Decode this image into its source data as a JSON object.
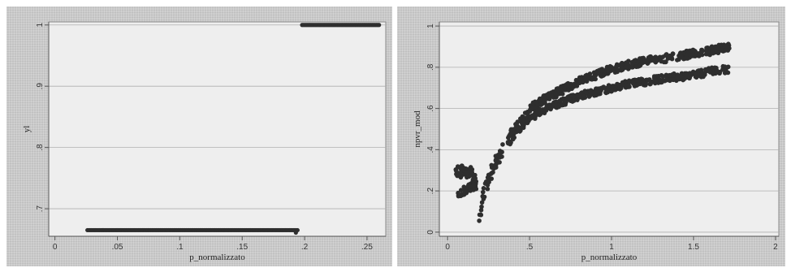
{
  "chart_data": [
    {
      "type": "scatter",
      "title": "",
      "xlabel": "p_normalizzato",
      "ylabel": "yl",
      "xlim": [
        -0.005,
        0.265
      ],
      "ylim": [
        0.655,
        1.005
      ],
      "xticks": [
        0,
        0.05,
        0.1,
        0.15,
        0.2,
        0.25
      ],
      "xtick_labels": [
        "0",
        ".05",
        ".1",
        ".15",
        ".2",
        ".25"
      ],
      "yticks": [
        0.7,
        0.8,
        0.9,
        1
      ],
      "ytick_labels": [
        ".7",
        ".8",
        ".9",
        "1"
      ],
      "grid": true,
      "series": [
        {
          "segments": [
            {
              "x_start": 0.026,
              "x_end": 0.195,
              "y": 0.665
            },
            {
              "x_start": 0.198,
              "x_end": 0.26,
              "y": 1.0
            }
          ],
          "points": [
            {
              "x": 0.193,
              "y": 0.661
            }
          ]
        }
      ]
    },
    {
      "type": "scatter",
      "title": "",
      "xlabel": "p_normalizzato",
      "ylabel": "npvr_mod",
      "xlim": [
        -0.05,
        2.02
      ],
      "ylim": [
        -0.02,
        1.02
      ],
      "xticks": [
        0,
        0.5,
        1,
        1.5,
        2
      ],
      "xtick_labels": [
        "0",
        ".5",
        "1",
        "1.5",
        "2"
      ],
      "yticks": [
        0,
        0.2,
        0.4,
        0.6,
        0.8,
        1
      ],
      "ytick_labels": [
        "0",
        ".2",
        ".4",
        ".6",
        ".8",
        "1"
      ],
      "grid": true,
      "series": [
        {
          "clusters": [
            {
              "x": [
                0.05,
                0.08,
                0.1,
                0.12,
                0.14,
                0.16,
                0.18
              ],
              "y": [
                0.3,
                0.29,
                0.31,
                0.28,
                0.3,
                0.26,
                0.24
              ],
              "spread": 0.025
            },
            {
              "x": [
                0.06,
                0.1,
                0.14,
                0.18
              ],
              "y": [
                0.19,
                0.2,
                0.22,
                0.23
              ],
              "spread": 0.02
            },
            {
              "x": [
                0.19,
                0.2,
                0.22,
                0.25,
                0.3,
                0.35,
                0.4,
                0.45,
                0.5
              ],
              "y": [
                0.02,
                0.1,
                0.18,
                0.26,
                0.35,
                0.42,
                0.48,
                0.53,
                0.57
              ],
              "spread": 0.035
            },
            {
              "x": [
                0.5,
                0.6,
                0.7,
                0.8,
                0.9,
                1.0,
                1.1,
                1.2,
                1.3,
                1.45,
                1.6,
                1.72
              ],
              "y": [
                0.6,
                0.65,
                0.69,
                0.73,
                0.76,
                0.79,
                0.81,
                0.83,
                0.84,
                0.86,
                0.88,
                0.9
              ],
              "spread": 0.02
            },
            {
              "x": [
                0.5,
                0.6,
                0.7,
                0.8,
                0.9,
                1.0,
                1.1,
                1.2,
                1.35,
                1.5,
                1.6,
                1.72
              ],
              "y": [
                0.55,
                0.6,
                0.63,
                0.66,
                0.68,
                0.7,
                0.72,
                0.73,
                0.75,
                0.76,
                0.78,
                0.79
              ],
              "spread": 0.018
            }
          ]
        }
      ]
    }
  ]
}
